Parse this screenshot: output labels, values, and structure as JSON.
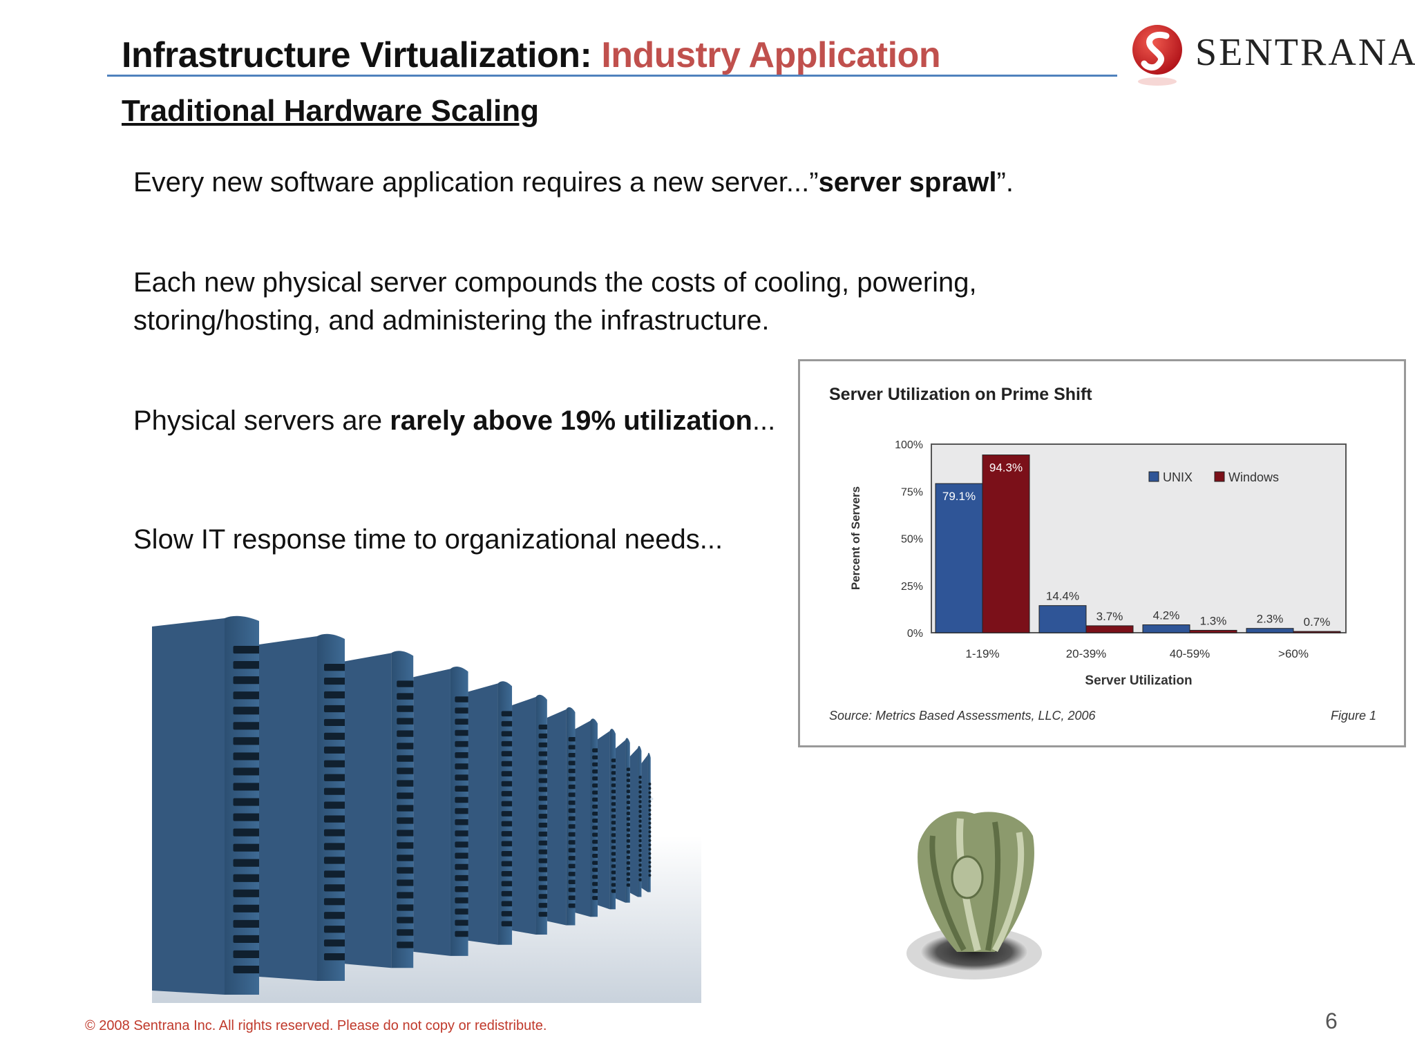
{
  "slide": {
    "title_main": "Infrastructure Virtualization: ",
    "title_accent": "Industry Application",
    "subtitle": "Traditional Hardware Scaling",
    "logo_text": "SENTRANA",
    "bullets": {
      "b1_pre": "Every new software application requires a new server...”",
      "b1_bold": "server sprawl",
      "b1_post": "”.",
      "b2_line1": "Each new physical server compounds the costs of cooling, powering,",
      "b2_line2": "storing/hosting, and administering the infrastructure.",
      "b3_pre": "Physical servers are ",
      "b3_bold": "rarely above 19% utilization",
      "b3_post": "...",
      "b4": "Slow IT response time to organizational needs..."
    },
    "footer": "© 2008 Sentrana Inc.  All rights reserved.  Please do not copy or redistribute.",
    "page_number": "6",
    "colors": {
      "accent": "#c0504d",
      "rule": "#4f81bd",
      "unix": "#2f5597",
      "windows": "#7b1019"
    }
  },
  "chart_data": {
    "type": "bar",
    "title": "Server Utilization on Prime Shift",
    "xlabel": "Server Utilization",
    "ylabel": "Percent of Servers",
    "categories": [
      "1-19%",
      "20-39%",
      "40-59%",
      ">60%"
    ],
    "series": [
      {
        "name": "UNIX",
        "values": [
          79.1,
          14.4,
          4.2,
          2.3
        ],
        "labels": [
          "79.1%",
          "14.4%",
          "4.2%",
          "2.3%"
        ]
      },
      {
        "name": "Windows",
        "values": [
          94.3,
          3.7,
          1.3,
          0.7
        ],
        "labels": [
          "94.3%",
          "3.7%",
          "1.3%",
          "0.7%"
        ]
      }
    ],
    "ylim": [
      0,
      100
    ],
    "yticks": [
      "0%",
      "25%",
      "50%",
      "75%",
      "100%"
    ],
    "legend": "top-right",
    "source": "Source: Metrics Based Assessments, LLC, 2006",
    "figure_label": "Figure 1"
  }
}
